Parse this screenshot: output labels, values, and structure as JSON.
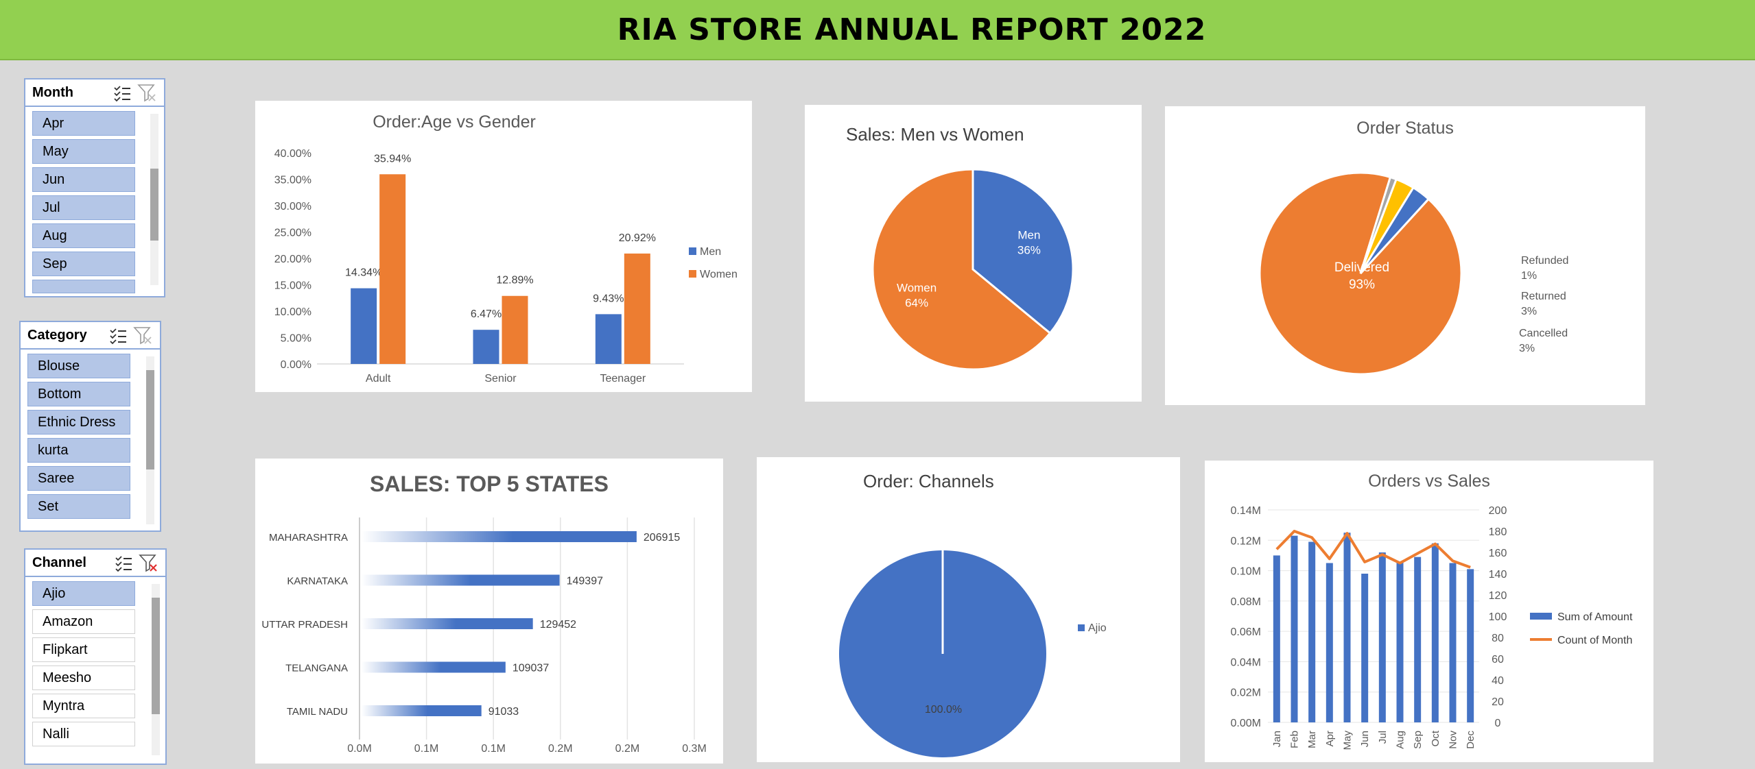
{
  "header": {
    "title": "RIA STORE ANNUAL REPORT 2022"
  },
  "slicers": {
    "month": {
      "title": "Month",
      "items": [
        "Apr",
        "May",
        "Jun",
        "Jul",
        "Aug",
        "Sep"
      ]
    },
    "category": {
      "title": "Category",
      "items": [
        "Blouse",
        "Bottom",
        "Ethnic Dress",
        "kurta",
        "Saree",
        "Set"
      ]
    },
    "channel": {
      "title": "Channel",
      "items": [
        "Ajio",
        "Amazon",
        "Flipkart",
        "Meesho",
        "Myntra",
        "Nalli"
      ],
      "selected": [
        "Ajio"
      ]
    }
  },
  "chart_data": [
    {
      "type": "bar",
      "title": "Order:Age vs Gender",
      "categories": [
        "Adult",
        "Senior",
        "Teenager"
      ],
      "series": [
        {
          "name": "Men",
          "values": [
            14.34,
            6.47,
            9.43
          ],
          "color": "#4472c4",
          "labels": [
            "14.34%",
            "6.47%",
            "9.43%"
          ]
        },
        {
          "name": "Women",
          "values": [
            35.94,
            12.89,
            20.92
          ],
          "color": "#ed7d31",
          "labels": [
            "35.94%",
            "12.89%",
            "20.92%"
          ]
        }
      ],
      "ylim": [
        0,
        40
      ],
      "yticks": [
        "0.00%",
        "5.00%",
        "10.00%",
        "15.00%",
        "20.00%",
        "25.00%",
        "30.00%",
        "35.00%",
        "40.00%"
      ],
      "legend": "right"
    },
    {
      "type": "pie",
      "title": "Sales: Men vs Women",
      "slices": [
        {
          "name": "Men",
          "value": 36,
          "label": "36%",
          "color": "#4472c4"
        },
        {
          "name": "Women",
          "value": 64,
          "label": "64%",
          "color": "#ed7d31"
        }
      ]
    },
    {
      "type": "pie",
      "title": "Order Status",
      "slices": [
        {
          "name": "Delivered",
          "value": 93,
          "label": "93%",
          "color": "#ed7d31"
        },
        {
          "name": "Refunded",
          "value": 1,
          "label": "1%",
          "color": "#a5a5a5"
        },
        {
          "name": "Returned",
          "value": 3,
          "label": "3%",
          "color": "#ffc000"
        },
        {
          "name": "Cancelled",
          "value": 3,
          "label": "3%",
          "color": "#4472c4"
        }
      ]
    },
    {
      "type": "bar",
      "orientation": "horizontal",
      "title": "SALES: TOP 5 STATES",
      "categories": [
        "MAHARASHTRA",
        "KARNATAKA",
        "UTTAR PRADESH",
        "TELANGANA",
        "TAMIL NADU"
      ],
      "values": [
        206915,
        149397,
        129452,
        109037,
        91033
      ],
      "xticks": [
        "0.0M",
        "0.1M",
        "0.1M",
        "0.2M",
        "0.2M",
        "0.3M"
      ],
      "xlim": [
        0,
        250000
      ],
      "color": "#4472c4"
    },
    {
      "type": "pie",
      "title": "Order: Channels",
      "slices": [
        {
          "name": "Ajio",
          "value": 100,
          "label": "100.0%",
          "color": "#4472c4"
        }
      ],
      "legend": "right"
    },
    {
      "type": "bar",
      "title": "Orders vs Sales",
      "categories": [
        "Jan",
        "Feb",
        "Mar",
        "Apr",
        "May",
        "Jun",
        "Jul",
        "Aug",
        "Sep",
        "Oct",
        "Nov",
        "Dec"
      ],
      "series": [
        {
          "name": "Sum of Amount",
          "type": "bar",
          "axis": "left",
          "values": [
            0.11,
            0.123,
            0.119,
            0.105,
            0.125,
            0.098,
            0.112,
            0.106,
            0.109,
            0.118,
            0.105,
            0.101
          ],
          "color": "#4472c4"
        },
        {
          "name": "Count of Month",
          "type": "line",
          "axis": "right",
          "values": [
            163,
            180,
            174,
            154,
            178,
            151,
            158,
            150,
            159,
            168,
            152,
            146
          ],
          "color": "#ed7d31"
        }
      ],
      "ylim": [
        0,
        0.14
      ],
      "yticks": [
        "0.00M",
        "0.02M",
        "0.04M",
        "0.06M",
        "0.08M",
        "0.10M",
        "0.12M",
        "0.14M"
      ],
      "y2lim": [
        0,
        200
      ],
      "y2ticks": [
        "0",
        "20",
        "40",
        "60",
        "80",
        "100",
        "120",
        "140",
        "160",
        "180",
        "200"
      ],
      "legend": "right"
    }
  ]
}
